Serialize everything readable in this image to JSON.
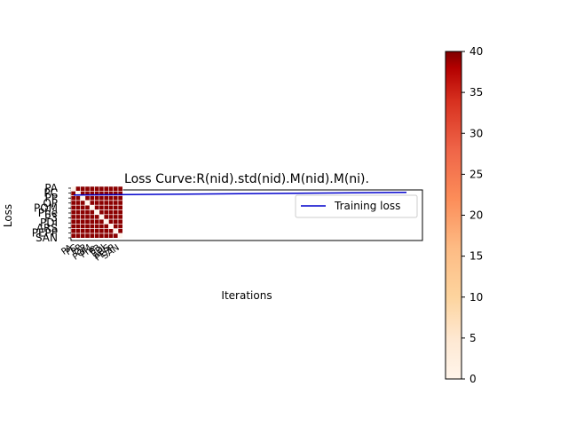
{
  "chart_data": {
    "type": "line",
    "title": "Loss Curve:R(nid).std(nid).M(nid).M(ni).",
    "xlabel": "Iterations",
    "ylabel": "Loss",
    "legend": {
      "placement": "upper-right",
      "entries": [
        "Training loss"
      ]
    },
    "series": [
      {
        "name": "Training loss",
        "color": "#0000cc",
        "x": [
          0,
          1
        ],
        "y": [
          0.9,
          0.95
        ]
      }
    ],
    "overlay_heatmap": {
      "type": "heatmap",
      "row_labels": [
        "PA",
        "PC",
        "PP",
        "OP",
        "POM",
        "Phe",
        "P3",
        "PDI",
        "ARS",
        "PEPP",
        "SAN"
      ],
      "col_labels": [
        "PA",
        "PC",
        "PP",
        "OP",
        "POM",
        "Phe",
        "P3",
        "PDI",
        "ARS",
        "PEPP",
        "SAN"
      ],
      "diagonal_value": 0,
      "offdiagonal_value": 40
    },
    "colorbar": {
      "min": 0,
      "max": 40,
      "ticks": [
        0,
        5,
        10,
        15,
        20,
        25,
        30,
        35,
        40
      ],
      "colormap": [
        "#fff5eb",
        "#fee6ce",
        "#fdd0a2",
        "#fdae6b",
        "#fd8d3c",
        "#f16913",
        "#d94801",
        "#a63603",
        "#7f2704",
        "#7f0000"
      ]
    }
  }
}
